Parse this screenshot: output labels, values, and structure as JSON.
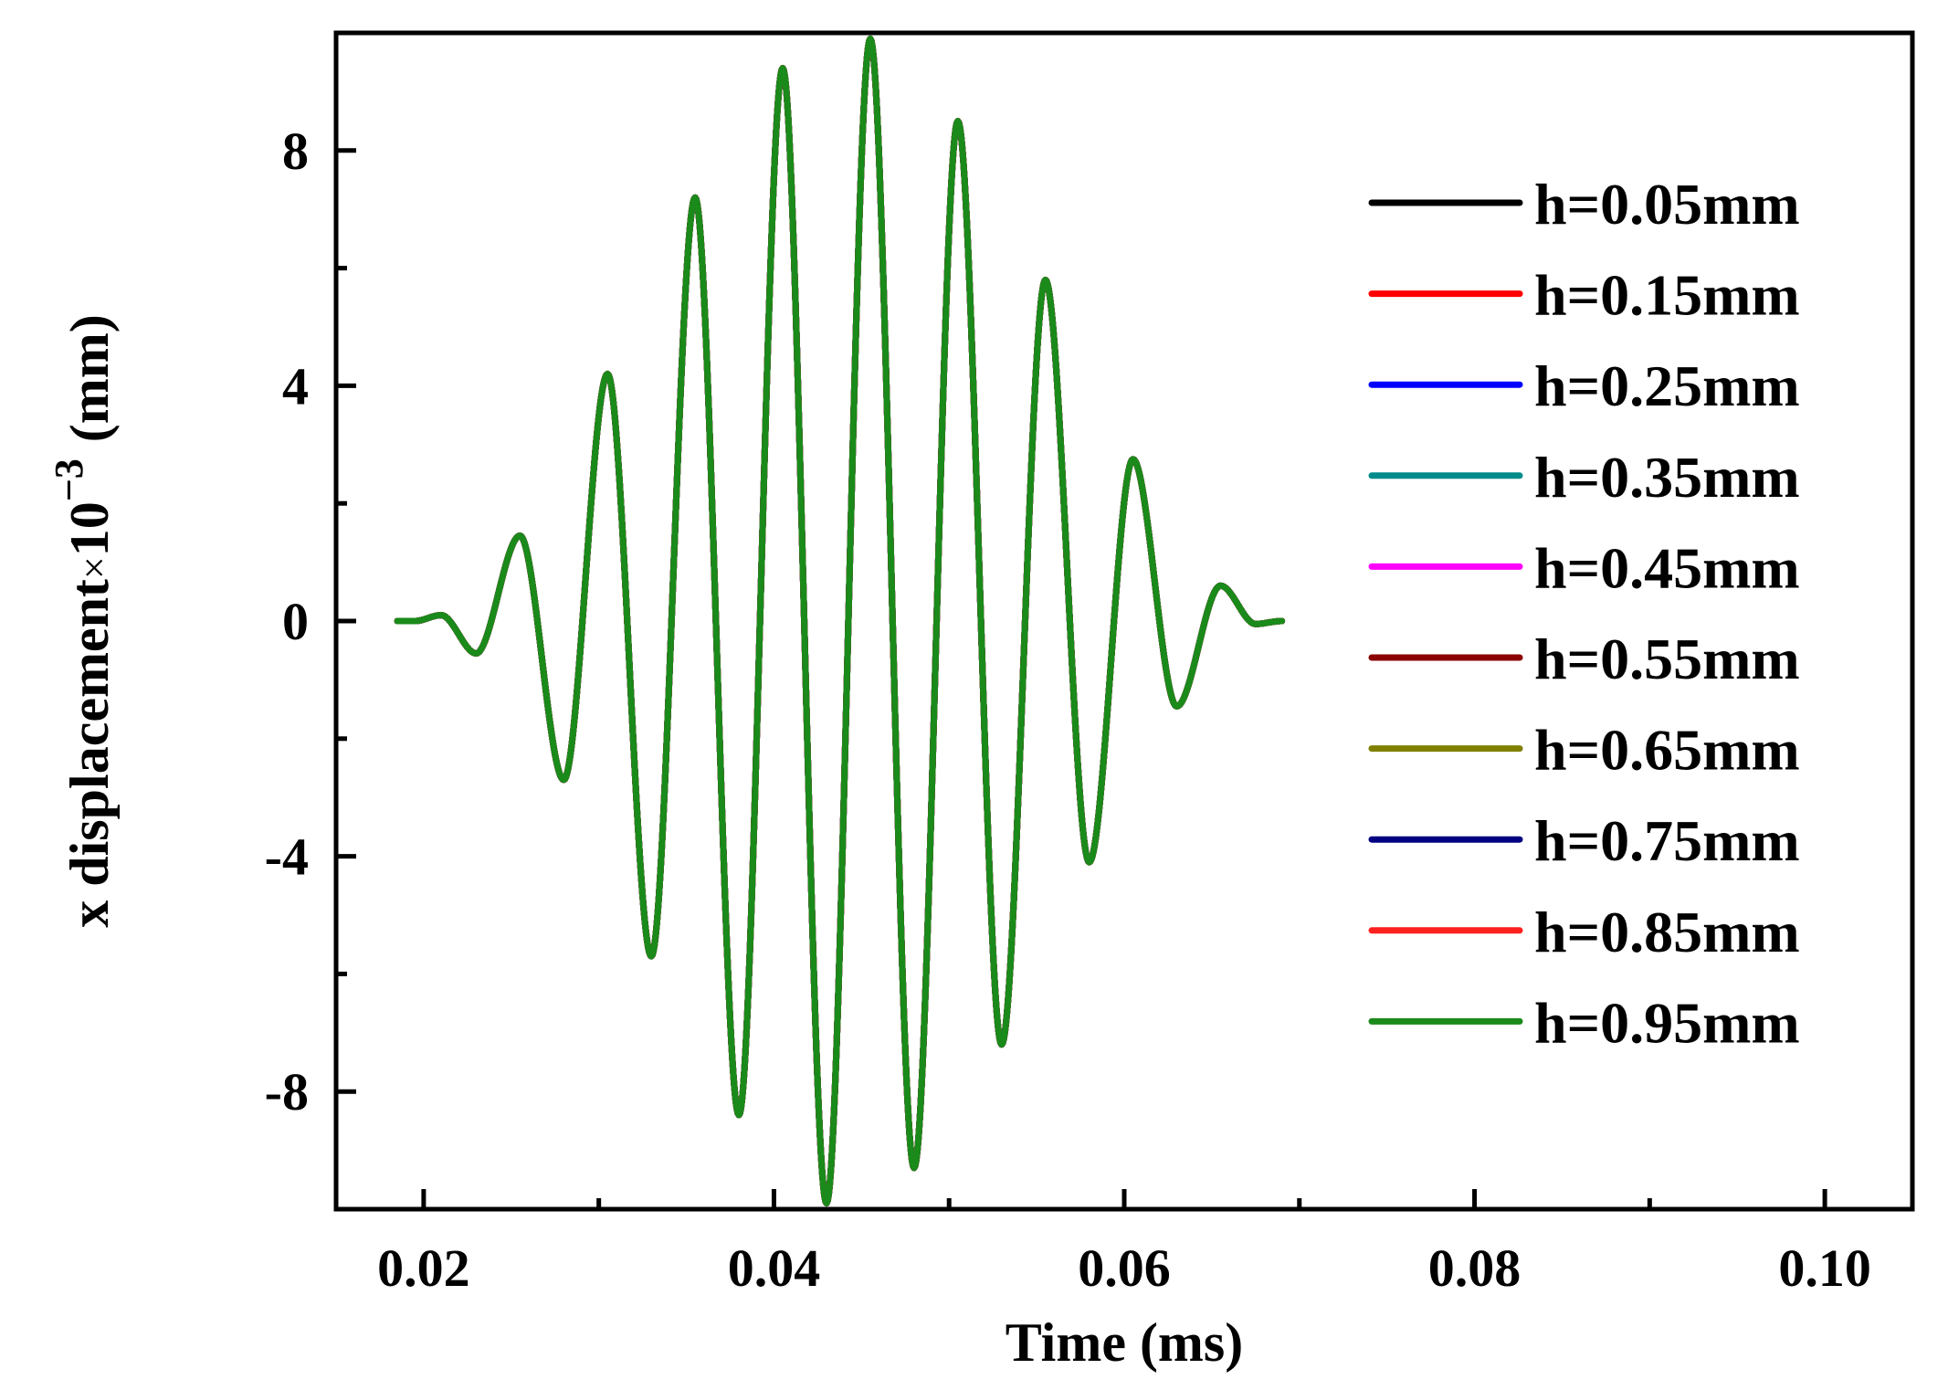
{
  "chart_data": {
    "type": "line",
    "title": "",
    "xlabel": "Time (ms)",
    "ylabel": {
      "main": "x displacement",
      "times": "×",
      "base": "10",
      "exponent": "−3",
      "unit": "(mm)"
    },
    "xlim": [
      0.015,
      0.105
    ],
    "ylim": [
      -10.0,
      10.0
    ],
    "x_ticks": [
      {
        "value": 0.02,
        "label": "0.02"
      },
      {
        "value": 0.04,
        "label": "0.04"
      },
      {
        "value": 0.06,
        "label": "0.06"
      },
      {
        "value": 0.08,
        "label": "0.08"
      },
      {
        "value": 0.1,
        "label": "0.10"
      }
    ],
    "x_minor_ticks": [
      0.03,
      0.05,
      0.07,
      0.09
    ],
    "y_ticks": [
      {
        "value": 8,
        "label": "8"
      },
      {
        "value": 4,
        "label": "4"
      },
      {
        "value": 0,
        "label": "0"
      },
      {
        "value": -4,
        "label": "-4"
      },
      {
        "value": -8,
        "label": "-8"
      }
    ],
    "y_minor_ticks": [
      6,
      2,
      -2,
      -6
    ],
    "grid": false,
    "legend_position": "right",
    "series": [
      {
        "name": "h=0.05mm",
        "color": "#000000"
      },
      {
        "name": "h=0.15mm",
        "color": "#ff0000"
      },
      {
        "name": "h=0.25mm",
        "color": "#0000ff"
      },
      {
        "name": "h=0.35mm",
        "color": "#008b8b"
      },
      {
        "name": "h=0.45mm",
        "color": "#ff00ff"
      },
      {
        "name": "h=0.55mm",
        "color": "#8b0000"
      },
      {
        "name": "h=0.65mm",
        "color": "#808000"
      },
      {
        "name": "h=0.75mm",
        "color": "#000080"
      },
      {
        "name": "h=0.85mm",
        "color": "#ff2020"
      },
      {
        "name": "h=0.95mm",
        "color": "#1a8a1a"
      }
    ],
    "waveform_extrema": [
      [
        0.0185,
        0.0
      ],
      [
        0.0195,
        0.0
      ],
      [
        0.021,
        0.1
      ],
      [
        0.023,
        -0.55
      ],
      [
        0.0255,
        1.45
      ],
      [
        0.028,
        -2.7
      ],
      [
        0.0305,
        4.2
      ],
      [
        0.033,
        -5.7
      ],
      [
        0.0355,
        7.2
      ],
      [
        0.038,
        -8.4
      ],
      [
        0.0405,
        9.4
      ],
      [
        0.043,
        -9.9
      ],
      [
        0.0455,
        9.9
      ],
      [
        0.048,
        -9.3
      ],
      [
        0.0505,
        8.5
      ],
      [
        0.053,
        -7.2
      ],
      [
        0.0555,
        5.8
      ],
      [
        0.058,
        -4.1
      ],
      [
        0.0605,
        2.75
      ],
      [
        0.063,
        -1.45
      ],
      [
        0.0655,
        0.6
      ],
      [
        0.0675,
        -0.05
      ],
      [
        0.069,
        0.0
      ]
    ]
  }
}
